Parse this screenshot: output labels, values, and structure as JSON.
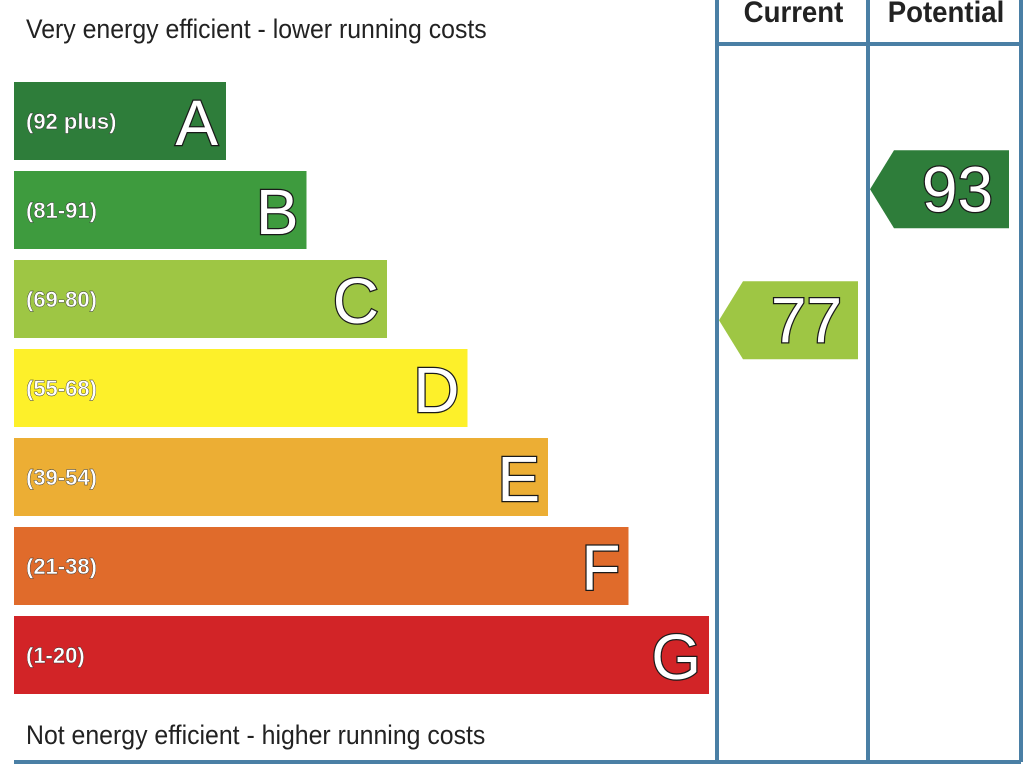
{
  "header": {
    "top_caption": "Very energy efficient - lower running costs",
    "bottom_caption": "Not energy efficient - higher running costs",
    "columns": [
      "Current",
      "Potential"
    ]
  },
  "chart_data": {
    "type": "bar",
    "categories": [
      "A",
      "B",
      "C",
      "D",
      "E",
      "F",
      "G"
    ],
    "ranges": [
      "(92 plus)",
      "(81-91)",
      "(69-80)",
      "(55-68)",
      "(39-54)",
      "(21-38)",
      "(1-20)"
    ],
    "colors": [
      "#2e7d3a",
      "#3e9b3e",
      "#9ec644",
      "#fdf02a",
      "#ecae34",
      "#e06b2b",
      "#d22427"
    ],
    "current": {
      "value": 77,
      "band": "C",
      "color": "#9ec644"
    },
    "potential": {
      "value": 93,
      "band": "A",
      "color": "#2e7d3a"
    }
  }
}
